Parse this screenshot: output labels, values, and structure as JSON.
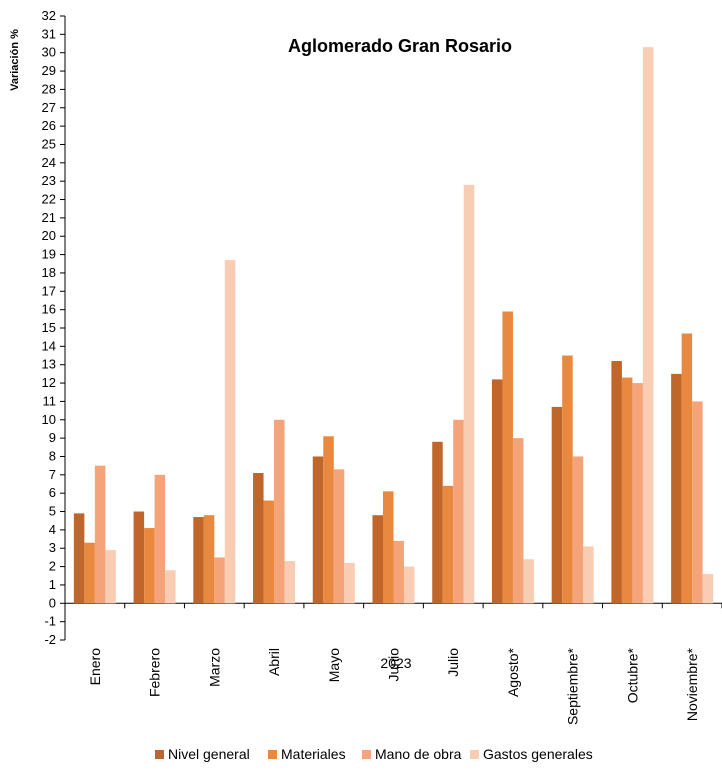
{
  "chart_data": {
    "type": "bar",
    "title": "Aglomerado Gran Rosario",
    "ylabel": "Variación  %",
    "xlabel": "2023",
    "ylim": [
      -2,
      32
    ],
    "ytick_step": 1,
    "grid": false,
    "legend_position": "bottom",
    "categories": [
      "Enero",
      "Febrero",
      "Marzo",
      "Abril",
      "Mayo",
      "Junio",
      "Julio",
      "Agosto*",
      "Septiembre*",
      "Octubre*",
      "Noviembre*"
    ],
    "series": [
      {
        "name": "Nivel general",
        "color": "#C0662A",
        "values": [
          4.9,
          5.0,
          4.7,
          7.1,
          8.0,
          4.8,
          8.8,
          12.2,
          10.7,
          13.2,
          12.5
        ]
      },
      {
        "name": "Materiales",
        "color": "#E8893F",
        "values": [
          3.3,
          4.1,
          4.8,
          5.6,
          9.1,
          6.1,
          6.4,
          15.9,
          13.5,
          12.3,
          14.7
        ]
      },
      {
        "name": "Mano de obra",
        "color": "#F5A47A",
        "values": [
          7.5,
          7.0,
          2.5,
          10.0,
          7.3,
          3.4,
          10.0,
          9.0,
          8.0,
          12.0,
          11.0
        ]
      },
      {
        "name": "Gastos generales",
        "color": "#F8CDB4",
        "values": [
          2.9,
          1.8,
          18.7,
          2.3,
          2.2,
          2.0,
          22.8,
          2.4,
          3.1,
          30.3,
          1.6
        ]
      }
    ]
  }
}
